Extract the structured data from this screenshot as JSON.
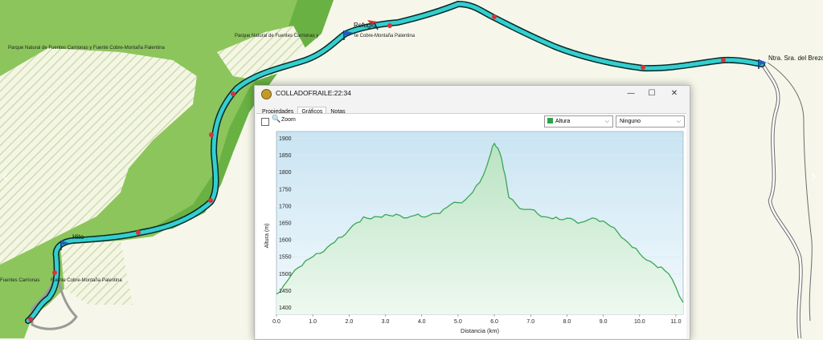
{
  "map": {
    "labels": {
      "park_1": "Parque Natural de Fuentes Carrionas y Fuente Cobre-Montaña Palentina",
      "park_2": "Parque Natural de Fuentes Carrionas y",
      "park_2b": "te Cobre-Montaña Palentina",
      "park_3a": "Fuentes Carrionas",
      "park_3b": "Fuente Cobre-Montaña Palentina"
    },
    "waypoints": {
      "refugio": "Refugio",
      "hito": "Hito",
      "brezo": "Ntra. Sra. del Brezo"
    },
    "nav_prev": "‹",
    "nav_next": "›",
    "colors": {
      "forest": "#8cc55c",
      "track_fill": "#33cfcf",
      "track_outline": "#0a2a2a",
      "road": "#6b6b6b"
    }
  },
  "window": {
    "title": "COLLADOFRAILE:22:34",
    "controls": {
      "minimize": "—",
      "maximize": "☐",
      "close": "✕"
    },
    "tabs": [
      "Propiedades",
      "Gráficos",
      "Notas"
    ],
    "active_tab": "Gráficos",
    "zoom_label": "Zoom",
    "series_select": "Altura",
    "second_select": "Ninguno"
  },
  "chart_data": {
    "type": "area",
    "xlabel": "Distancia (km)",
    "ylabel": "Altura (m)",
    "xlim": [
      0,
      11.2
    ],
    "ylim": [
      1380,
      1920
    ],
    "x_ticks": [
      "0.0",
      "1.0",
      "2.0",
      "3.0",
      "4.0",
      "5.0",
      "6.0",
      "7.0",
      "8.0",
      "9.0",
      "10.0",
      "11.0"
    ],
    "y_ticks": [
      "1400",
      "1450",
      "1500",
      "1550",
      "1600",
      "1650",
      "1700",
      "1750",
      "1800",
      "1850",
      "1900"
    ],
    "series": [
      {
        "color": "#3aa655",
        "x": [
          0.0,
          0.2,
          0.4,
          0.6,
          0.8,
          1.0,
          1.2,
          1.4,
          1.6,
          1.8,
          2.0,
          2.2,
          2.4,
          2.6,
          2.8,
          3.0,
          3.2,
          3.4,
          3.6,
          3.8,
          4.0,
          4.2,
          4.4,
          4.6,
          4.8,
          5.0,
          5.2,
          5.4,
          5.6,
          5.8,
          5.9,
          6.0,
          6.1,
          6.2,
          6.3,
          6.4,
          6.6,
          6.8,
          7.0,
          7.2,
          7.4,
          7.6,
          7.8,
          8.0,
          8.2,
          8.4,
          8.6,
          8.8,
          9.0,
          9.2,
          9.4,
          9.6,
          9.8,
          10.0,
          10.2,
          10.4,
          10.6,
          10.8,
          11.0,
          11.2
        ],
        "y": [
          1440,
          1465,
          1495,
          1518,
          1538,
          1550,
          1560,
          1578,
          1593,
          1608,
          1630,
          1650,
          1668,
          1662,
          1668,
          1675,
          1670,
          1672,
          1665,
          1672,
          1668,
          1672,
          1678,
          1690,
          1705,
          1710,
          1718,
          1740,
          1770,
          1820,
          1855,
          1885,
          1870,
          1840,
          1790,
          1725,
          1705,
          1690,
          1690,
          1676,
          1668,
          1662,
          1660,
          1664,
          1658,
          1652,
          1660,
          1662,
          1656,
          1640,
          1622,
          1600,
          1578,
          1560,
          1540,
          1528,
          1520,
          1500,
          1460,
          1415
        ]
      }
    ]
  }
}
